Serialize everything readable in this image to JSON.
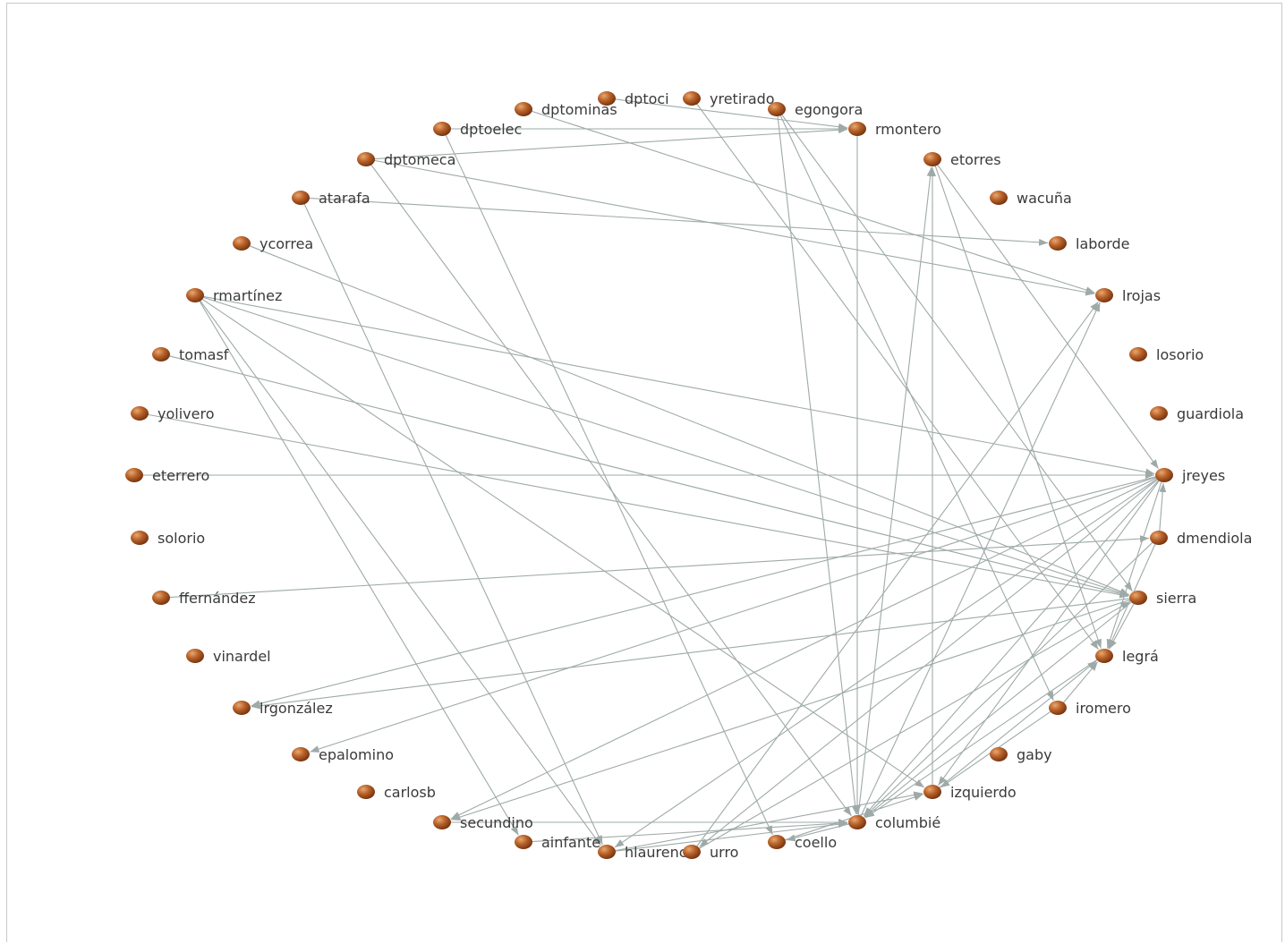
{
  "colors": {
    "edge": "#9eaaa8",
    "node_light": "#e9a870",
    "node_mid": "#b8622a",
    "node_dark": "#6e2e0c",
    "label": "#3a3a3a"
  },
  "nodes": [
    {
      "id": "dptoci",
      "label": "dptoci"
    },
    {
      "id": "yretirado",
      "label": "yretirado"
    },
    {
      "id": "dptominas",
      "label": "dptominas"
    },
    {
      "id": "egongora",
      "label": "egongora"
    },
    {
      "id": "dptoelec",
      "label": "dptoelec"
    },
    {
      "id": "rmontero",
      "label": "rmontero"
    },
    {
      "id": "dptomeca",
      "label": "dptomeca"
    },
    {
      "id": "etorres",
      "label": "etorres"
    },
    {
      "id": "atarafa",
      "label": "atarafa"
    },
    {
      "id": "wacuna",
      "label": "wacuña"
    },
    {
      "id": "ycorrea",
      "label": "ycorrea"
    },
    {
      "id": "laborde",
      "label": "laborde"
    },
    {
      "id": "rmartinez",
      "label": "rmartínez"
    },
    {
      "id": "lrojas",
      "label": "lrojas"
    },
    {
      "id": "tomasf",
      "label": "tomasf"
    },
    {
      "id": "losorio",
      "label": "losorio"
    },
    {
      "id": "yolivero",
      "label": "yolivero"
    },
    {
      "id": "guardiola",
      "label": "guardiola"
    },
    {
      "id": "eterrero",
      "label": "eterrero"
    },
    {
      "id": "jreyes",
      "label": "jreyes"
    },
    {
      "id": "solorio",
      "label": "solorio"
    },
    {
      "id": "dmendiola",
      "label": "dmendiola"
    },
    {
      "id": "ffernandez",
      "label": "ffernández"
    },
    {
      "id": "sierra",
      "label": "sierra"
    },
    {
      "id": "vinardel",
      "label": "vinardel"
    },
    {
      "id": "legra",
      "label": "legrá"
    },
    {
      "id": "lrgonzalez",
      "label": "lrgonzález"
    },
    {
      "id": "iromero",
      "label": "iromero"
    },
    {
      "id": "epalomino",
      "label": "epalomino"
    },
    {
      "id": "gaby",
      "label": "gaby"
    },
    {
      "id": "carlosb",
      "label": "carlosb"
    },
    {
      "id": "izquierdo",
      "label": "izquierdo"
    },
    {
      "id": "secundino",
      "label": "secundino"
    },
    {
      "id": "columbie",
      "label": "columbié"
    },
    {
      "id": "ainfante",
      "label": "ainfante"
    },
    {
      "id": "coello",
      "label": "coello"
    },
    {
      "id": "hlaurencio",
      "label": "hlaurencio"
    },
    {
      "id": "urro",
      "label": "urro"
    }
  ],
  "edges": [
    [
      "dptoelec",
      "rmontero"
    ],
    [
      "dptomeca",
      "rmontero"
    ],
    [
      "dptoci",
      "rmontero"
    ],
    [
      "dptominas",
      "lrojas"
    ],
    [
      "dptomeca",
      "lrojas"
    ],
    [
      "atarafa",
      "laborde"
    ],
    [
      "dptoelec",
      "coello"
    ],
    [
      "dptomeca",
      "columbie"
    ],
    [
      "atarafa",
      "hlaurencio"
    ],
    [
      "ycorrea",
      "sierra"
    ],
    [
      "rmartinez",
      "sierra"
    ],
    [
      "rmartinez",
      "jreyes"
    ],
    [
      "rmartinez",
      "ainfante"
    ],
    [
      "rmartinez",
      "hlaurencio"
    ],
    [
      "rmartinez",
      "izquierdo"
    ],
    [
      "tomasf",
      "sierra"
    ],
    [
      "yolivero",
      "sierra"
    ],
    [
      "eterrero",
      "jreyes"
    ],
    [
      "ffernandez",
      "dmendiola"
    ],
    [
      "egongora",
      "columbie"
    ],
    [
      "egongora",
      "sierra"
    ],
    [
      "egongora",
      "iromero"
    ],
    [
      "yretirado",
      "legra"
    ],
    [
      "rmontero",
      "columbie"
    ],
    [
      "etorres",
      "jreyes"
    ],
    [
      "etorres",
      "legra"
    ],
    [
      "columbie",
      "etorres"
    ],
    [
      "izquierdo",
      "etorres"
    ],
    [
      "urro",
      "lrojas"
    ],
    [
      "columbie",
      "lrojas"
    ],
    [
      "jreyes",
      "lrgonzalez"
    ],
    [
      "jreyes",
      "epalomino"
    ],
    [
      "jreyes",
      "secundino"
    ],
    [
      "jreyes",
      "hlaurencio"
    ],
    [
      "jreyes",
      "urro"
    ],
    [
      "jreyes",
      "columbie"
    ],
    [
      "jreyes",
      "legra"
    ],
    [
      "jreyes",
      "izquierdo"
    ],
    [
      "sierra",
      "lrgonzalez"
    ],
    [
      "sierra",
      "secundino"
    ],
    [
      "sierra",
      "columbie"
    ],
    [
      "sierra",
      "legra"
    ],
    [
      "dmendiola",
      "legra"
    ],
    [
      "dmendiola",
      "jreyes"
    ],
    [
      "dmendiola",
      "columbie"
    ],
    [
      "legra",
      "columbie"
    ],
    [
      "iromero",
      "legra"
    ],
    [
      "iromero",
      "izquierdo"
    ],
    [
      "izquierdo",
      "legra"
    ],
    [
      "secundino",
      "columbie"
    ],
    [
      "ainfante",
      "columbie"
    ],
    [
      "hlaurencio",
      "columbie"
    ],
    [
      "hlaurencio",
      "izquierdo"
    ],
    [
      "coello",
      "izquierdo"
    ],
    [
      "urro",
      "sierra"
    ],
    [
      "columbie",
      "coello"
    ]
  ]
}
